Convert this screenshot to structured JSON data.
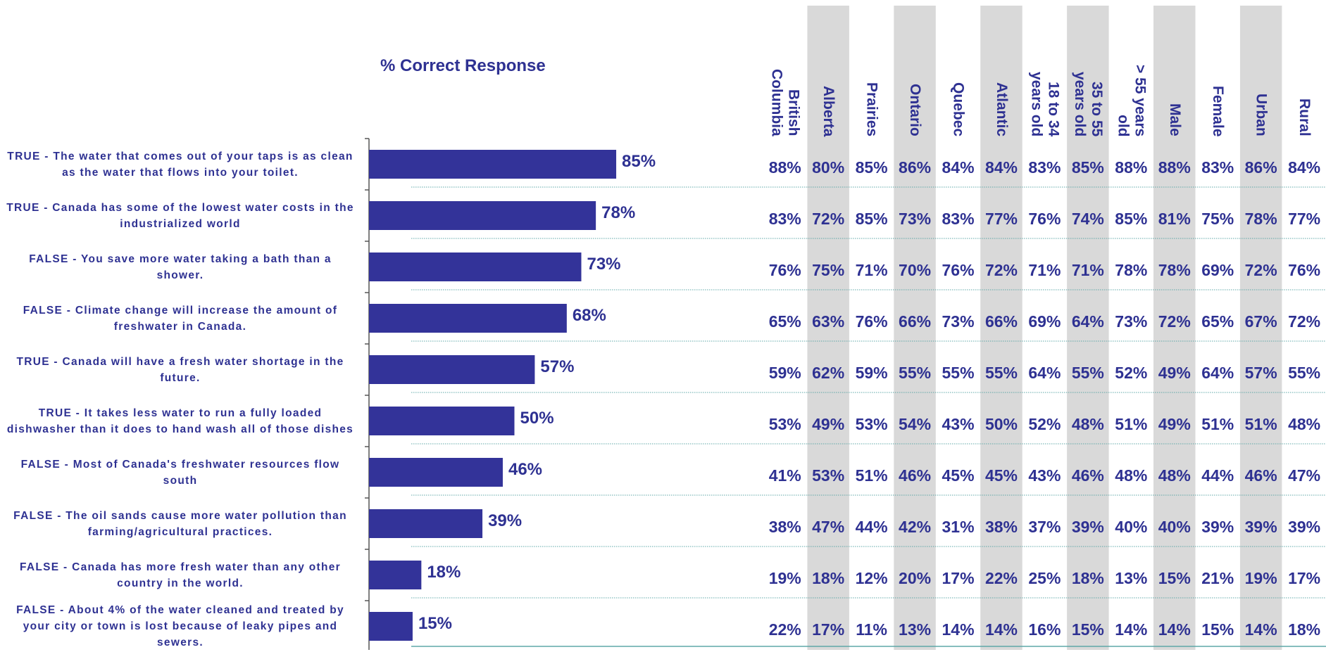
{
  "chart_data": {
    "type": "bar",
    "orientation": "horizontal",
    "title": "% Correct Response",
    "color": "#333399",
    "categories": [
      "TRUE - The water that comes out of your taps is as clean as the water that flows into your toilet.",
      "TRUE - Canada has some of the lowest water costs in the industrialized world",
      "FALSE - You save more water taking a bath than a shower.",
      "FALSE - Climate change will increase the amount of freshwater in Canada.",
      "TRUE - Canada will have a fresh water shortage in the future.",
      "TRUE - It takes less water to run a fully loaded dishwasher than it does to hand wash all of those dishes",
      "FALSE - Most of Canada's freshwater resources flow south",
      "FALSE - The oil sands cause more water pollution than farming/agricultural practices.",
      "FALSE - Canada has more fresh water than any other country in the world.",
      "FALSE - About 4% of the water cleaned and treated by your city or town is lost because of leaky pipes and sewers."
    ],
    "values": [
      85,
      78,
      73,
      68,
      57,
      50,
      46,
      39,
      18,
      15
    ],
    "value_labels": [
      "85%",
      "78%",
      "73%",
      "68%",
      "57%",
      "50%",
      "46%",
      "39%",
      "18%",
      "15%"
    ]
  },
  "table": {
    "columns": [
      "British\nColumbia",
      "Alberta",
      "Prairies",
      "Ontario",
      "Quebec",
      "Atlantic",
      "18 to 34\nyears old",
      "35 to 55\nyears old",
      "> 55 years\nold",
      "Male",
      "Female",
      "Urban",
      "Rural"
    ],
    "rows": [
      [
        "88%",
        "80%",
        "85%",
        "86%",
        "84%",
        "84%",
        "83%",
        "85%",
        "88%",
        "88%",
        "83%",
        "86%",
        "84%"
      ],
      [
        "83%",
        "72%",
        "85%",
        "73%",
        "83%",
        "77%",
        "76%",
        "74%",
        "85%",
        "81%",
        "75%",
        "78%",
        "77%"
      ],
      [
        "76%",
        "75%",
        "71%",
        "70%",
        "76%",
        "72%",
        "71%",
        "71%",
        "78%",
        "78%",
        "69%",
        "72%",
        "76%"
      ],
      [
        "65%",
        "63%",
        "76%",
        "66%",
        "73%",
        "66%",
        "69%",
        "64%",
        "73%",
        "72%",
        "65%",
        "67%",
        "72%"
      ],
      [
        "59%",
        "62%",
        "59%",
        "55%",
        "55%",
        "55%",
        "64%",
        "55%",
        "52%",
        "49%",
        "64%",
        "57%",
        "55%"
      ],
      [
        "53%",
        "49%",
        "53%",
        "54%",
        "43%",
        "50%",
        "52%",
        "48%",
        "51%",
        "49%",
        "51%",
        "51%",
        "48%"
      ],
      [
        "41%",
        "53%",
        "51%",
        "46%",
        "45%",
        "45%",
        "43%",
        "46%",
        "48%",
        "48%",
        "44%",
        "46%",
        "47%"
      ],
      [
        "38%",
        "47%",
        "44%",
        "42%",
        "31%",
        "38%",
        "37%",
        "39%",
        "40%",
        "40%",
        "39%",
        "39%",
        "39%"
      ],
      [
        "19%",
        "18%",
        "12%",
        "20%",
        "17%",
        "22%",
        "25%",
        "18%",
        "13%",
        "15%",
        "21%",
        "19%",
        "17%"
      ],
      [
        "22%",
        "17%",
        "11%",
        "13%",
        "14%",
        "14%",
        "16%",
        "15%",
        "14%",
        "14%",
        "15%",
        "14%",
        "18%"
      ]
    ]
  }
}
